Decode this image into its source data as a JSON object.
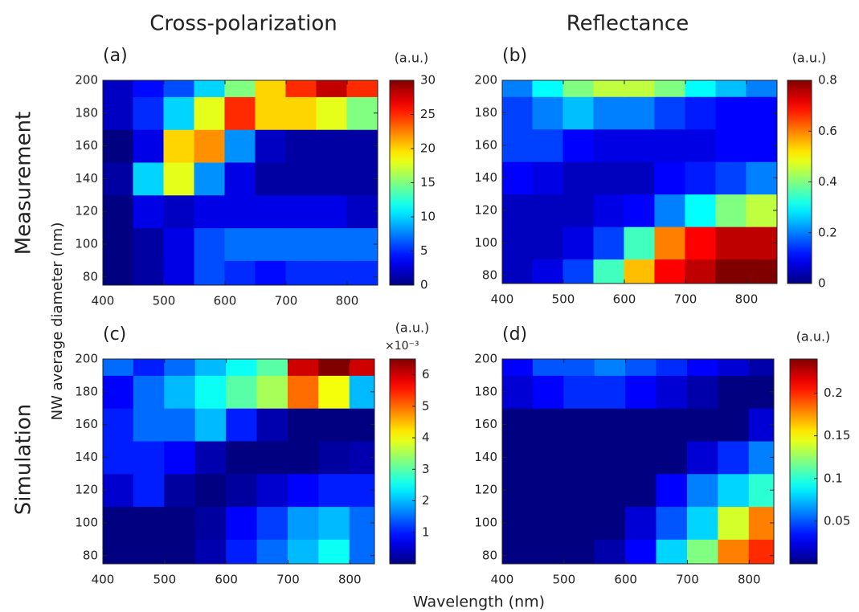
{
  "column_titles": [
    "Cross-polarization",
    "Reflectance"
  ],
  "row_titles": [
    "Measurement",
    "Simulation"
  ],
  "y_label": "NW average diameter (nm)",
  "x_label": "Wavelength (nm)",
  "chart_data": [
    {
      "type": "heatmap",
      "label": "(a)",
      "colorbar_label": "(a.u.)",
      "colormap": "jet",
      "x": [
        425,
        475,
        525,
        575,
        625,
        675,
        725,
        775,
        825
      ],
      "y": [
        80,
        100,
        120,
        140,
        160,
        180,
        200
      ],
      "z": [
        [
          0,
          1,
          3,
          6,
          5,
          4,
          5,
          5,
          5
        ],
        [
          0,
          1,
          3,
          6,
          7,
          7,
          7,
          7,
          7
        ],
        [
          0,
          3,
          2,
          3,
          3,
          3,
          3,
          3,
          2
        ],
        [
          1,
          10,
          18,
          8,
          3,
          1,
          1,
          1,
          1
        ],
        [
          0,
          3,
          20,
          22,
          8,
          2,
          1,
          1,
          1
        ],
        [
          2,
          5,
          10,
          18,
          25,
          20,
          20,
          18,
          15
        ],
        [
          2,
          4,
          6,
          10,
          15,
          20,
          25,
          28,
          25
        ]
      ],
      "xlim": [
        400,
        850
      ],
      "ylim": [
        75,
        200
      ],
      "xticks": [
        400,
        500,
        600,
        700,
        800
      ],
      "yticks": [
        80,
        100,
        120,
        140,
        160,
        180,
        200
      ],
      "clim": [
        0,
        30
      ],
      "cticks": [
        0,
        5,
        10,
        15,
        20,
        25,
        30
      ]
    },
    {
      "type": "heatmap",
      "label": "(b)",
      "colorbar_label": "(a.u.)",
      "colormap": "jet",
      "x": [
        425,
        475,
        525,
        575,
        625,
        675,
        725,
        775,
        825
      ],
      "y": [
        80,
        100,
        120,
        140,
        160,
        180,
        200
      ],
      "z": [
        [
          0.05,
          0.08,
          0.15,
          0.35,
          0.55,
          0.7,
          0.75,
          0.8,
          0.8
        ],
        [
          0.05,
          0.05,
          0.08,
          0.15,
          0.35,
          0.6,
          0.7,
          0.75,
          0.75
        ],
        [
          0.05,
          0.05,
          0.05,
          0.08,
          0.1,
          0.2,
          0.3,
          0.4,
          0.45
        ],
        [
          0.1,
          0.08,
          0.05,
          0.05,
          0.05,
          0.1,
          0.12,
          0.15,
          0.2
        ],
        [
          0.15,
          0.15,
          0.1,
          0.08,
          0.08,
          0.08,
          0.08,
          0.1,
          0.1
        ],
        [
          0.15,
          0.2,
          0.25,
          0.2,
          0.2,
          0.15,
          0.12,
          0.1,
          0.1
        ],
        [
          0.2,
          0.3,
          0.4,
          0.45,
          0.45,
          0.4,
          0.3,
          0.25,
          0.2
        ]
      ],
      "xlim": [
        400,
        850
      ],
      "ylim": [
        75,
        200
      ],
      "xticks": [
        400,
        500,
        600,
        700,
        800
      ],
      "yticks": [
        80,
        100,
        120,
        140,
        160,
        180,
        200
      ],
      "clim": [
        0,
        0.8
      ],
      "cticks": [
        0,
        0.2,
        0.4,
        0.6,
        0.8
      ]
    },
    {
      "type": "heatmap",
      "label": "(c)",
      "colorbar_label": "(a.u.)",
      "colorbar_exponent": "×10⁻³",
      "colormap": "jet",
      "x": [
        425,
        475,
        525,
        575,
        625,
        675,
        725,
        775,
        825
      ],
      "y": [
        80,
        100,
        120,
        140,
        160,
        180,
        200
      ],
      "z": [
        [
          0,
          0,
          0,
          0.3,
          1,
          1.5,
          2,
          2.5,
          1.5
        ],
        [
          0,
          0,
          0,
          0.2,
          0.8,
          1.2,
          1.8,
          2,
          1.5
        ],
        [
          0.5,
          1,
          0.2,
          0,
          0.2,
          0.5,
          0.8,
          1,
          1
        ],
        [
          1,
          1,
          0.8,
          0.3,
          0,
          0,
          0,
          0.2,
          0.3
        ],
        [
          1,
          1.5,
          1.5,
          2,
          1,
          0.3,
          0,
          0,
          0
        ],
        [
          0.8,
          1.5,
          2,
          2.5,
          3,
          3.5,
          5,
          4,
          2
        ],
        [
          1.5,
          1,
          1.5,
          2,
          2.5,
          3,
          6,
          6.5,
          6
        ]
      ],
      "xlim": [
        400,
        840
      ],
      "ylim": [
        75,
        200
      ],
      "xticks": [
        400,
        500,
        600,
        700,
        800
      ],
      "yticks": [
        80,
        100,
        120,
        140,
        160,
        180,
        200
      ],
      "clim": [
        0,
        6.5
      ],
      "cticks": [
        1,
        2,
        3,
        4,
        5,
        6
      ]
    },
    {
      "type": "heatmap",
      "label": "(d)",
      "colorbar_label": "(a.u.)",
      "colormap": "jet",
      "x": [
        425,
        475,
        525,
        575,
        625,
        675,
        725,
        775,
        825
      ],
      "y": [
        80,
        100,
        120,
        140,
        160,
        180,
        200
      ],
      "z": [
        [
          0,
          0,
          0,
          0.01,
          0.03,
          0.08,
          0.12,
          0.18,
          0.2
        ],
        [
          0,
          0,
          0,
          0,
          0.02,
          0.05,
          0.08,
          0.14,
          0.18
        ],
        [
          0,
          0,
          0,
          0,
          0,
          0.03,
          0.06,
          0.08,
          0.1
        ],
        [
          0,
          0,
          0,
          0,
          0,
          0,
          0.02,
          0.04,
          0.06
        ],
        [
          0,
          0,
          0,
          0,
          0,
          0,
          0,
          0,
          0.02
        ],
        [
          0.02,
          0.03,
          0.04,
          0.04,
          0.03,
          0.02,
          0.01,
          0,
          0
        ],
        [
          0.03,
          0.05,
          0.05,
          0.06,
          0.05,
          0.04,
          0.03,
          0.02,
          0.01
        ]
      ],
      "xlim": [
        400,
        840
      ],
      "ylim": [
        75,
        200
      ],
      "xticks": [
        400,
        500,
        600,
        700,
        800
      ],
      "yticks": [
        80,
        100,
        120,
        140,
        160,
        180,
        200
      ],
      "clim": [
        0,
        0.24
      ],
      "cticks": [
        0.05,
        0.1,
        0.15,
        0.2
      ]
    }
  ]
}
